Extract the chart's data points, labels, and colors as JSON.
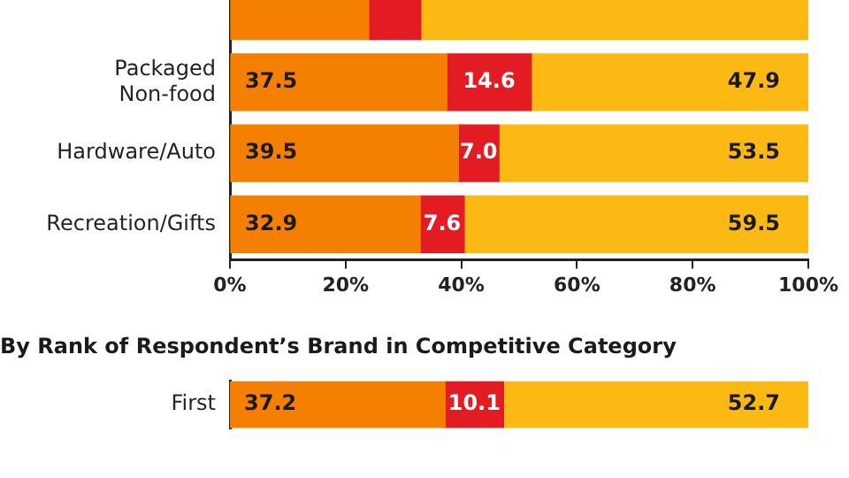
{
  "chart_data": [
    {
      "type": "bar",
      "orientation": "horizontal",
      "stacked": true,
      "categories": [
        null,
        "Packaged Non-food",
        "Hardware/Auto",
        "Recreation/Gifts"
      ],
      "series": [
        {
          "color": "#f57f00",
          "values": [
            24,
            37.5,
            39.5,
            32.9
          ],
          "value_labels": [
            null,
            "37.5",
            "39.5",
            "32.9"
          ]
        },
        {
          "color": "#e31b23",
          "values": [
            9,
            14.6,
            7.0,
            7.6
          ],
          "value_labels": [
            null,
            "14.6",
            "7.0",
            "7.6"
          ]
        },
        {
          "color": "#fdb913",
          "values": [
            67,
            47.9,
            53.5,
            59.5
          ],
          "value_labels": [
            null,
            "47.9",
            "53.5",
            "59.5"
          ]
        }
      ],
      "xlim": [
        0,
        100
      ],
      "xticks": [
        {
          "value": 0,
          "label": "0%"
        },
        {
          "value": 20,
          "label": "20%"
        },
        {
          "value": 40,
          "label": "40%"
        },
        {
          "value": 60,
          "label": "60%"
        },
        {
          "value": 80,
          "label": "80%"
        },
        {
          "value": 100,
          "label": "100%"
        }
      ],
      "grid": false
    },
    {
      "type": "bar",
      "orientation": "horizontal",
      "stacked": true,
      "title": "By Rank of Respondent’s Brand in Competitive Category",
      "categories": [
        "First"
      ],
      "series": [
        {
          "color": "#f57f00",
          "values": [
            37.2
          ]
        },
        {
          "color": "#e31b23",
          "values": [
            10.1
          ]
        },
        {
          "color": "#fdb913",
          "values": [
            52.7
          ]
        }
      ],
      "xlim": [
        0,
        100
      ],
      "tick_labels": "y",
      "data_labels": true
    }
  ]
}
